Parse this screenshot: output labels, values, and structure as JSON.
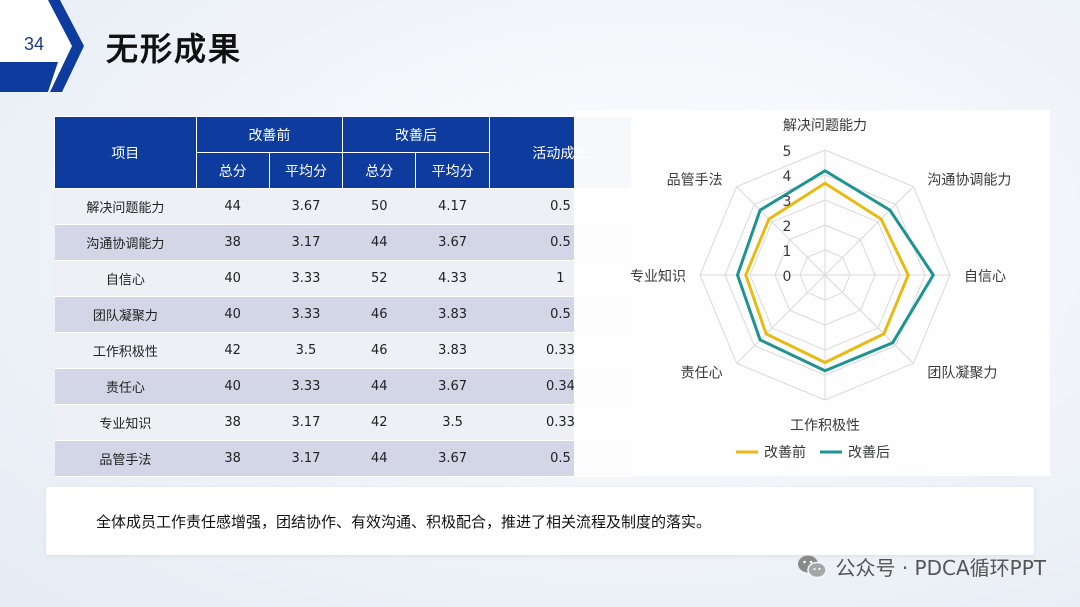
{
  "page": {
    "number": "34",
    "title": "无形成果"
  },
  "table": {
    "headers": {
      "item": "项目",
      "before": "改善前",
      "after": "改善后",
      "growth": "活动成长",
      "total": "总分",
      "avg": "平均分"
    },
    "rows": [
      {
        "item": "解决问题能力",
        "before_total": "44",
        "before_avg": "3.67",
        "after_total": "50",
        "after_avg": "4.17",
        "growth": "0.5"
      },
      {
        "item": "沟通协调能力",
        "before_total": "38",
        "before_avg": "3.17",
        "after_total": "44",
        "after_avg": "3.67",
        "growth": "0.5"
      },
      {
        "item": "自信心",
        "before_total": "40",
        "before_avg": "3.33",
        "after_total": "52",
        "after_avg": "4.33",
        "growth": "1"
      },
      {
        "item": "团队凝聚力",
        "before_total": "40",
        "before_avg": "3.33",
        "after_total": "46",
        "after_avg": "3.83",
        "growth": "0.5"
      },
      {
        "item": "工作积极性",
        "before_total": "42",
        "before_avg": "3.5",
        "after_total": "46",
        "after_avg": "3.83",
        "growth": "0.33"
      },
      {
        "item": "责任心",
        "before_total": "40",
        "before_avg": "3.33",
        "after_total": "44",
        "after_avg": "3.67",
        "growth": "0.34"
      },
      {
        "item": "专业知识",
        "before_total": "38",
        "before_avg": "3.17",
        "after_total": "42",
        "after_avg": "3.5",
        "growth": "0.33"
      },
      {
        "item": "品管手法",
        "before_total": "38",
        "before_avg": "3.17",
        "after_total": "44",
        "after_avg": "3.67",
        "growth": "0.5"
      }
    ]
  },
  "chart_data": {
    "type": "radar",
    "categories": [
      "解决问题能力",
      "沟通协调能力",
      "自信心",
      "团队凝聚力",
      "工作积极性",
      "责任心",
      "专业知识",
      "品管手法"
    ],
    "series": [
      {
        "name": "改善前",
        "values": [
          3.67,
          3.17,
          3.33,
          3.33,
          3.5,
          3.33,
          3.17,
          3.17
        ],
        "color": "#e8b90c"
      },
      {
        "name": "改善后",
        "values": [
          4.17,
          3.67,
          4.33,
          3.83,
          3.83,
          3.67,
          3.5,
          3.67
        ],
        "color": "#17908f"
      }
    ],
    "rlim": [
      0,
      5
    ],
    "ticks": [
      "0",
      "1",
      "2",
      "3",
      "4",
      "5"
    ],
    "legend": "bottom"
  },
  "summary": {
    "text": "全体成员工作责任感增强，团结协作、有效沟通、积极配合，推进了相关流程及制度的落实。"
  },
  "footer": {
    "text": "公众号 · PDCA循环PPT"
  },
  "colors": {
    "header": "#0d3c9e",
    "row_light": "#eef0f5",
    "row_dark": "#d3d6e6",
    "before": "#e8b90c",
    "after": "#17908f"
  }
}
